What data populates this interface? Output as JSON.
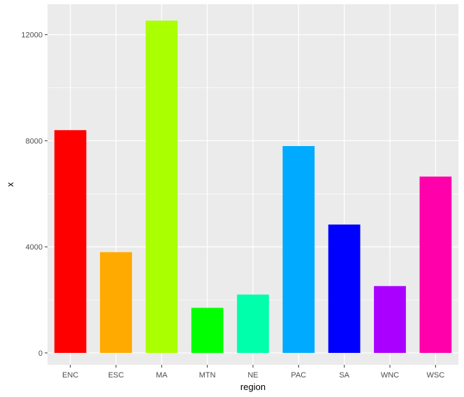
{
  "chart_data": {
    "type": "bar",
    "title": "",
    "xlabel": "region",
    "ylabel": "x",
    "categories": [
      "ENC",
      "ESC",
      "MA",
      "MTN",
      "NE",
      "PAC",
      "SA",
      "WNC",
      "WSC"
    ],
    "values": [
      8400,
      3800,
      12530,
      1700,
      2200,
      7800,
      4840,
      2520,
      6650
    ],
    "colors": [
      "#FF0000",
      "#FFAA00",
      "#AAFF00",
      "#00FF00",
      "#00FFAA",
      "#00AAFF",
      "#0000FF",
      "#AA00FF",
      "#FF00AA"
    ],
    "yticks": [
      0,
      4000,
      8000,
      12000
    ],
    "ylim": [
      -450,
      13150
    ],
    "grid": true,
    "legend": "none",
    "panel_background": "#EBEBEB",
    "grid_color": "#FFFFFF"
  }
}
